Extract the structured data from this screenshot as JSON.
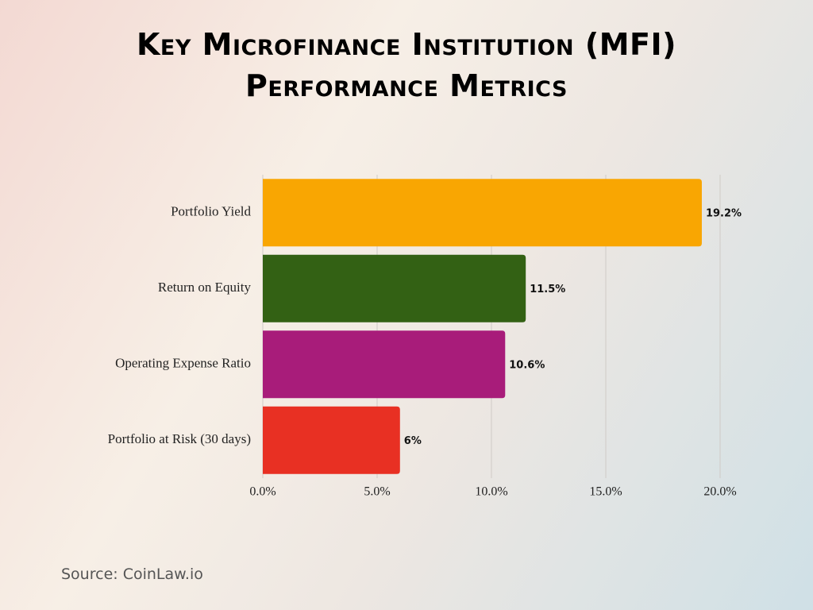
{
  "chart_data": {
    "type": "bar",
    "orientation": "horizontal",
    "title": "Key Microfinance Institution (MFI) Performance Metrics",
    "categories": [
      "Portfolio Yield",
      "Return on Equity",
      "Operating Expense Ratio",
      "Portfolio at Risk (30 days)"
    ],
    "values": [
      19.2,
      11.5,
      10.6,
      6
    ],
    "value_labels": [
      "19.2%",
      "11.5%",
      "10.6%",
      "6%"
    ],
    "colors": [
      "#f9a602",
      "#336114",
      "#a81c7a",
      "#e83023"
    ],
    "xlim": [
      0,
      20
    ],
    "xticks": [
      {
        "value": 0,
        "label": "0.0%"
      },
      {
        "value": 5,
        "label": "5.0%"
      },
      {
        "value": 10,
        "label": "10.0%"
      },
      {
        "value": 15,
        "label": "15.0%"
      },
      {
        "value": 20,
        "label": "20.0%"
      }
    ],
    "grid": true,
    "source": "Source: CoinLaw.io"
  }
}
